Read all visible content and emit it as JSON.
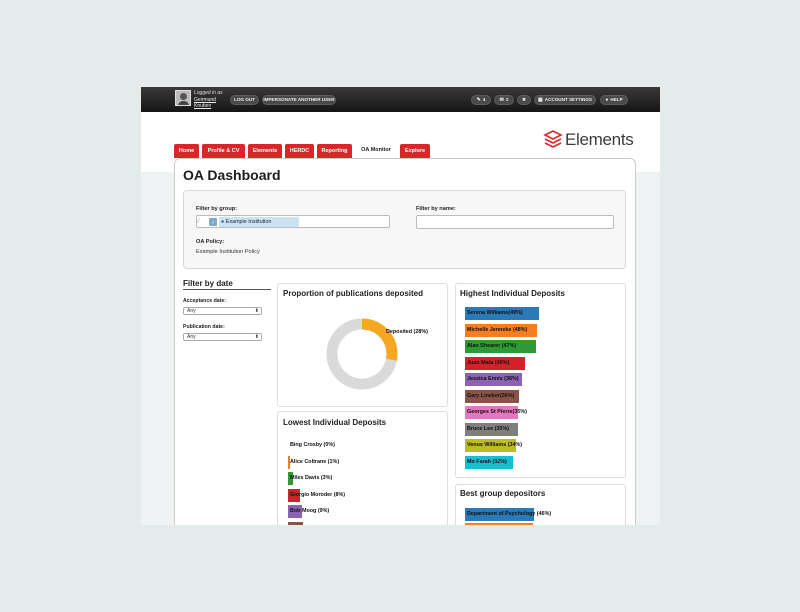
{
  "user": {
    "logged_in_label": "Logged in as",
    "name": "Geirmund Knuben"
  },
  "topbar": {
    "logout": "LOG OUT",
    "impersonate": "IMPERSONATE ANOTHER USER",
    "tags_count": "4",
    "messages_count": "2",
    "account_settings": "ACCOUNT SETTINGS",
    "help": "HELP"
  },
  "brand": {
    "name": "Elements",
    "color": "#d9262b"
  },
  "tabs": [
    {
      "label": "Home"
    },
    {
      "label": "Profile & CV"
    },
    {
      "label": "Elements"
    },
    {
      "label": "HERDC"
    },
    {
      "label": "Reporting"
    },
    {
      "label": "OA Monitor",
      "active": true
    },
    {
      "label": "Explore"
    }
  ],
  "page": {
    "title": "OA Dashboard"
  },
  "filters": {
    "group_label": "Filter by group:",
    "group_value": "Example Institution",
    "name_label": "Filter by name:",
    "name_value": "",
    "policy_label": "OA Policy:",
    "policy_value": "Example Institution Policy"
  },
  "date_filter": {
    "title": "Filter by date",
    "acceptance_label": "Acceptance date:",
    "acceptance_value": "Any",
    "publication_label": "Publication date:",
    "publication_value": "Any"
  },
  "proportion": {
    "title": "Proportion of publications deposited",
    "slice_label": "Deposited (28%)",
    "deposited_pct": 28,
    "deposited_color": "#f5a623",
    "rest_color": "#dadada"
  },
  "highest": {
    "title": "Highest Individual Deposits",
    "items": [
      {
        "label": "Serena Williams(49%)",
        "pct": 49,
        "color": "#2a7ab8"
      },
      {
        "label": "Michelle Jenneke (48%)",
        "pct": 48,
        "color": "#f47e20"
      },
      {
        "label": "Alan Shearer (47%)",
        "pct": 47,
        "color": "#2e9a36"
      },
      {
        "label": "Juan Mata (40%)",
        "pct": 40,
        "color": "#d2232a"
      },
      {
        "label": "Jessica Ennis (38%)",
        "pct": 38,
        "color": "#8c62b2"
      },
      {
        "label": "Gary Lineker(36%)",
        "pct": 36,
        "color": "#8b5347"
      },
      {
        "label": "Georges St Pierre(35%)",
        "pct": 35,
        "color": "#e577c0"
      },
      {
        "label": "Bruce Lee (35%)",
        "pct": 35,
        "color": "#7f7f7f"
      },
      {
        "label": "Venus Williams (34%)",
        "pct": 34,
        "color": "#bcbd22"
      },
      {
        "label": "Mo Farah (32%)",
        "pct": 32,
        "color": "#17becf"
      }
    ]
  },
  "lowest": {
    "title": "Lowest Individual Deposits",
    "items": [
      {
        "label": "Bing Crosby (0%)",
        "pct": 0,
        "color": "#2a7ab8"
      },
      {
        "label": "Alice Coltrane (1%)",
        "pct": 1,
        "color": "#f47e20"
      },
      {
        "label": "Miles Davis (3%)",
        "pct": 3,
        "color": "#2e9a36"
      },
      {
        "label": "Giorgio Moroder (8%)",
        "pct": 8,
        "color": "#d2232a"
      },
      {
        "label": "Bob Moog (9%)",
        "pct": 9,
        "color": "#8c62b2"
      },
      {
        "label": "",
        "pct": 10,
        "color": "#8b5347"
      }
    ]
  },
  "best_group": {
    "title": "Best group depositors",
    "items": [
      {
        "label": "Department of Psychology (46%)",
        "pct": 46,
        "color": "#2a7ab8"
      },
      {
        "label": "",
        "pct": 45,
        "color": "#f47e20"
      }
    ]
  }
}
